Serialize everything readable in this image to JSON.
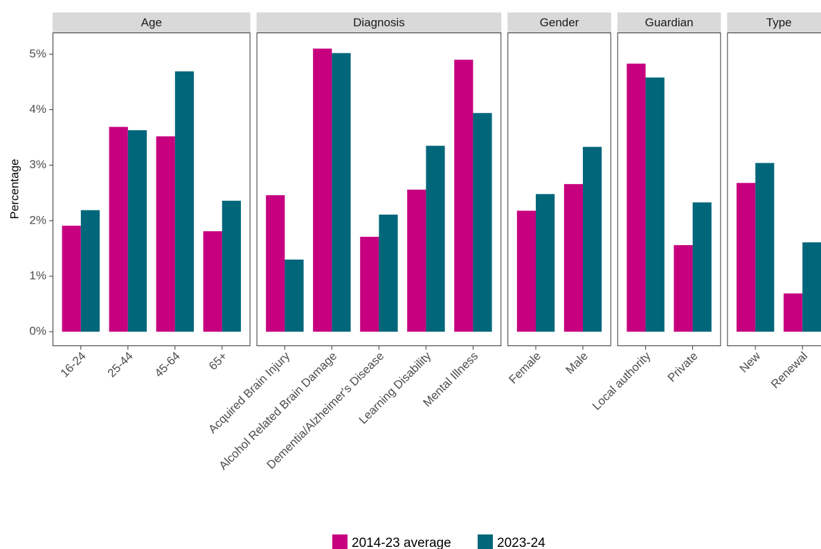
{
  "chart_data": {
    "type": "bar",
    "y_label": "Percentage",
    "ylim": [
      -0.26,
      5.39
    ],
    "yticks": [
      {
        "value": 0,
        "label": "0%"
      },
      {
        "value": 1,
        "label": "1%"
      },
      {
        "value": 2,
        "label": "2%"
      },
      {
        "value": 3,
        "label": "3%"
      },
      {
        "value": 4,
        "label": "4%"
      },
      {
        "value": 5,
        "label": "5%"
      }
    ],
    "series": [
      {
        "name": "2014-23 average",
        "color": "#c6007e"
      },
      {
        "name": "2023-24",
        "color": "#00667a"
      }
    ],
    "facets": [
      {
        "title": "Age",
        "categories": [
          "16-24",
          "25-44",
          "45-64",
          "65+"
        ],
        "series": [
          {
            "values": [
              1.91,
              3.69,
              3.52,
              1.81
            ]
          },
          {
            "values": [
              2.19,
              3.63,
              4.69,
              2.36
            ]
          }
        ]
      },
      {
        "title": "Diagnosis",
        "categories": [
          "Acquired Brain Injury",
          "Alcohol Related Brain Damage",
          "Dementia/Alzheimer's Disease",
          "Learning Disability",
          "Mental Illness"
        ],
        "series": [
          {
            "values": [
              2.46,
              5.1,
              1.71,
              2.56,
              4.9
            ]
          },
          {
            "values": [
              1.3,
              5.02,
              2.11,
              3.35,
              3.94
            ]
          }
        ]
      },
      {
        "title": "Gender",
        "categories": [
          "Female",
          "Male"
        ],
        "series": [
          {
            "values": [
              2.18,
              2.66
            ]
          },
          {
            "values": [
              2.48,
              3.33
            ]
          }
        ]
      },
      {
        "title": "Guardian",
        "categories": [
          "Local authority",
          "Private"
        ],
        "series": [
          {
            "values": [
              4.83,
              1.56
            ]
          },
          {
            "values": [
              4.58,
              2.33
            ]
          }
        ]
      },
      {
        "title": "Type",
        "categories": [
          "New",
          "Renewal"
        ],
        "series": [
          {
            "values": [
              2.68,
              0.69
            ]
          },
          {
            "values": [
              3.04,
              1.61
            ]
          }
        ]
      }
    ]
  }
}
